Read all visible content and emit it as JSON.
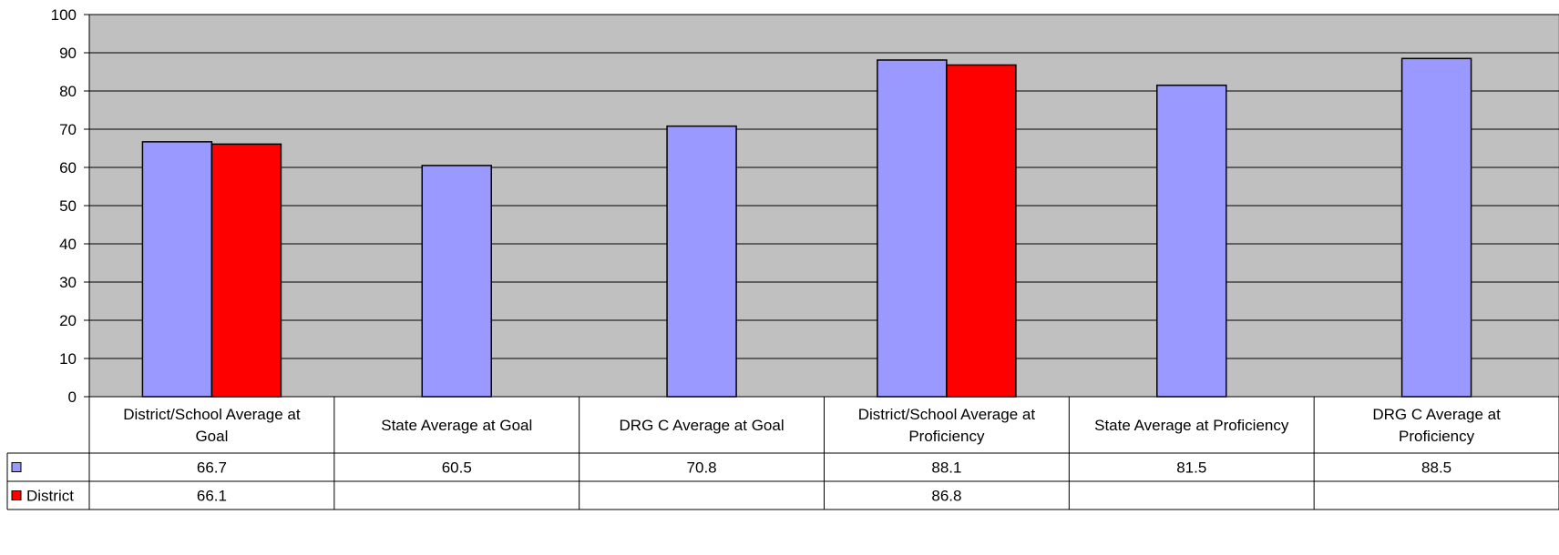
{
  "chart_data": {
    "type": "bar",
    "title": "",
    "xlabel": "",
    "ylabel": "",
    "ylim": [
      0,
      100
    ],
    "yticks": [
      0,
      10,
      20,
      30,
      40,
      50,
      60,
      70,
      80,
      90,
      100
    ],
    "grid": true,
    "legend": "data-table",
    "categories": [
      [
        "District/School Average at",
        "Goal"
      ],
      [
        "State Average at Goal"
      ],
      [
        "DRG C Average at Goal"
      ],
      [
        "District/School Average at",
        "Proficiency"
      ],
      [
        "State Average at Proficiency"
      ],
      [
        "DRG C Average at",
        "Proficiency"
      ]
    ],
    "series": [
      {
        "name": "",
        "color": "#9999ff",
        "values": [
          66.7,
          60.5,
          70.8,
          88.1,
          81.5,
          88.5
        ]
      },
      {
        "name": "District",
        "color": "#ff0000",
        "values": [
          66.1,
          null,
          null,
          86.8,
          null,
          null
        ]
      }
    ],
    "plot_background": "#c0c0c0"
  }
}
